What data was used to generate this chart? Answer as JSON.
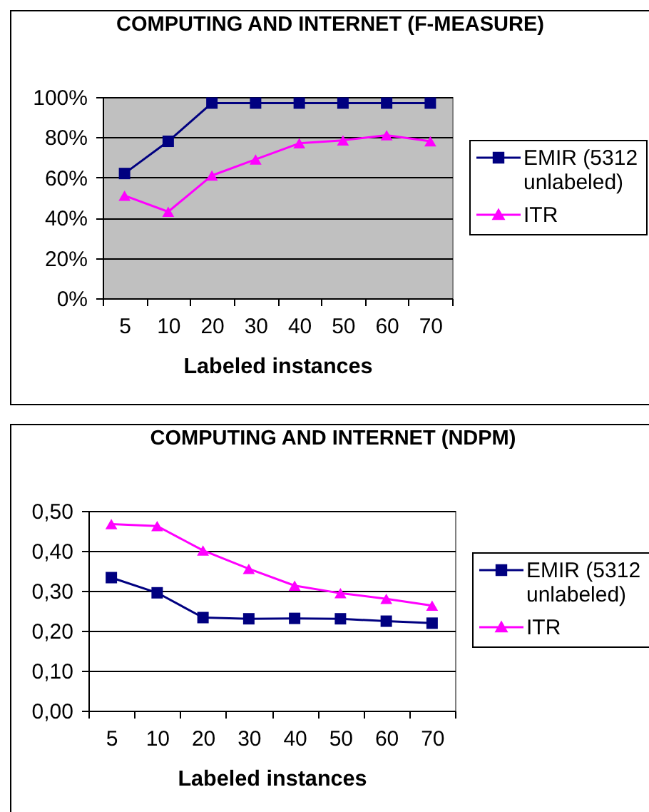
{
  "chart_data": [
    {
      "type": "line",
      "title": "COMPUTING AND INTERNET (F-MEASURE)",
      "xlabel": "Labeled instances",
      "categories": [
        "5",
        "10",
        "20",
        "30",
        "40",
        "50",
        "60",
        "70"
      ],
      "series": [
        {
          "name": "EMIR (5312 unlabeled)",
          "color": "#000080",
          "marker": "square",
          "values": [
            62,
            78,
            97,
            97,
            97,
            97,
            97,
            97
          ]
        },
        {
          "name": "ITR",
          "color": "#ff00ff",
          "marker": "triangle",
          "values": [
            51,
            43,
            61,
            69,
            77,
            78.5,
            81,
            78
          ]
        }
      ],
      "ylim": [
        0,
        100
      ],
      "yticks": [
        {
          "value": 0,
          "label": "0%"
        },
        {
          "value": 20,
          "label": "20%"
        },
        {
          "value": 40,
          "label": "40%"
        },
        {
          "value": 60,
          "label": "60%"
        },
        {
          "value": 80,
          "label": "80%"
        },
        {
          "value": 100,
          "label": "100%"
        }
      ],
      "grid": "y",
      "legend": "right"
    },
    {
      "type": "line",
      "title": "COMPUTING AND INTERNET (NDPM)",
      "xlabel": "Labeled instances",
      "categories": [
        "5",
        "10",
        "20",
        "30",
        "40",
        "50",
        "60",
        "70"
      ],
      "series": [
        {
          "name": "EMIR (5312 unlabeled)",
          "color": "#000080",
          "marker": "square",
          "values": [
            0.333,
            0.295,
            0.233,
            0.23,
            0.231,
            0.23,
            0.224,
            0.219
          ]
        },
        {
          "name": "ITR",
          "color": "#ff00ff",
          "marker": "triangle",
          "values": [
            0.467,
            0.462,
            0.401,
            0.355,
            0.313,
            0.294,
            0.28,
            0.263
          ]
        }
      ],
      "ylim": [
        0,
        0.5
      ],
      "yticks": [
        {
          "value": 0,
          "label": "0,00"
        },
        {
          "value": 0.1,
          "label": "0,10"
        },
        {
          "value": 0.2,
          "label": "0,20"
        },
        {
          "value": 0.3,
          "label": "0,30"
        },
        {
          "value": 0.4,
          "label": "0,40"
        },
        {
          "value": 0.5,
          "label": "0,50"
        }
      ],
      "grid": "y",
      "legend": "right"
    }
  ]
}
